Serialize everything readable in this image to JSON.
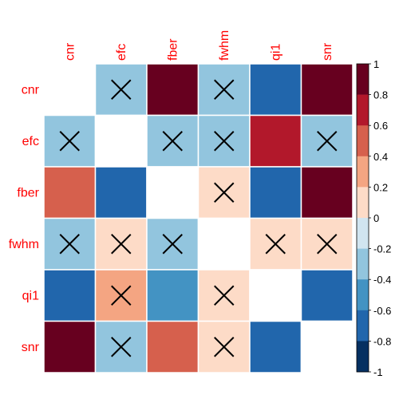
{
  "chart_data": {
    "type": "heatmap",
    "title": "",
    "variables": [
      "cnr",
      "efc",
      "fber",
      "fwhm",
      "qi1",
      "snr"
    ],
    "matrix": [
      [
        null,
        -0.25,
        0.95,
        -0.25,
        -0.65,
        0.95
      ],
      [
        -0.25,
        null,
        -0.25,
        -0.25,
        0.75,
        -0.25
      ],
      [
        0.55,
        -0.65,
        null,
        0.15,
        -0.65,
        0.95
      ],
      [
        -0.25,
        0.15,
        -0.25,
        null,
        0.15,
        0.15
      ],
      [
        -0.65,
        0.35,
        -0.45,
        0.15,
        null,
        -0.65
      ],
      [
        0.95,
        -0.25,
        0.55,
        0.15,
        -0.65,
        null
      ]
    ],
    "not_significant": [
      [
        false,
        true,
        false,
        true,
        false,
        false
      ],
      [
        true,
        false,
        true,
        true,
        false,
        true
      ],
      [
        false,
        false,
        false,
        true,
        false,
        false
      ],
      [
        true,
        true,
        true,
        false,
        true,
        true
      ],
      [
        false,
        true,
        false,
        true,
        false,
        false
      ],
      [
        false,
        true,
        false,
        true,
        false,
        false
      ]
    ],
    "colorbar": {
      "range": [
        -1,
        1
      ],
      "ticks": [
        "1",
        "0.8",
        "0.6",
        "0.4",
        "0.2",
        "0",
        "-0.2",
        "-0.4",
        "-0.6",
        "-0.8",
        "-1"
      ],
      "colors": [
        "#67001F",
        "#B2182B",
        "#D6604D",
        "#F4A582",
        "#FDDBC7",
        "#D1E5F0",
        "#92C5DE",
        "#4393C3",
        "#2166AC",
        "#053061"
      ]
    },
    "legend_position": "right",
    "grid": true
  }
}
